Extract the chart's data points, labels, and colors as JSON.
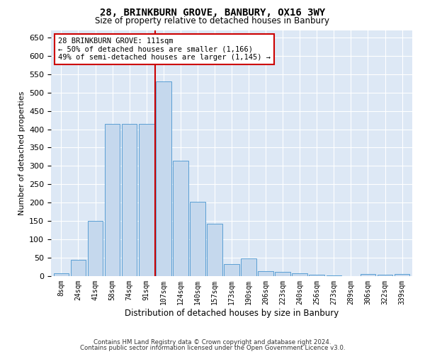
{
  "title1": "28, BRINKBURN GROVE, BANBURY, OX16 3WY",
  "title2": "Size of property relative to detached houses in Banbury",
  "xlabel": "Distribution of detached houses by size in Banbury",
  "ylabel": "Number of detached properties",
  "categories": [
    "8sqm",
    "24sqm",
    "41sqm",
    "58sqm",
    "74sqm",
    "91sqm",
    "107sqm",
    "124sqm",
    "140sqm",
    "157sqm",
    "173sqm",
    "190sqm",
    "206sqm",
    "223sqm",
    "240sqm",
    "256sqm",
    "273sqm",
    "289sqm",
    "306sqm",
    "322sqm",
    "339sqm"
  ],
  "values": [
    7,
    45,
    150,
    415,
    415,
    415,
    530,
    315,
    203,
    142,
    33,
    48,
    14,
    12,
    8,
    3,
    2,
    0,
    5,
    3,
    5
  ],
  "bar_color": "#c5d8ed",
  "bar_edge_color": "#5a9fd4",
  "highlight_index": 6,
  "highlight_line_color": "#cc0000",
  "annotation_text": "28 BRINKBURN GROVE: 111sqm\n← 50% of detached houses are smaller (1,166)\n49% of semi-detached houses are larger (1,145) →",
  "annotation_box_color": "#ffffff",
  "annotation_box_edge": "#cc0000",
  "footer1": "Contains HM Land Registry data © Crown copyright and database right 2024.",
  "footer2": "Contains public sector information licensed under the Open Government Licence v3.0.",
  "ylim": [
    0,
    670
  ],
  "yticks": [
    0,
    50,
    100,
    150,
    200,
    250,
    300,
    350,
    400,
    450,
    500,
    550,
    600,
    650
  ],
  "bg_color": "#ffffff",
  "plot_bg_color": "#dde8f5"
}
